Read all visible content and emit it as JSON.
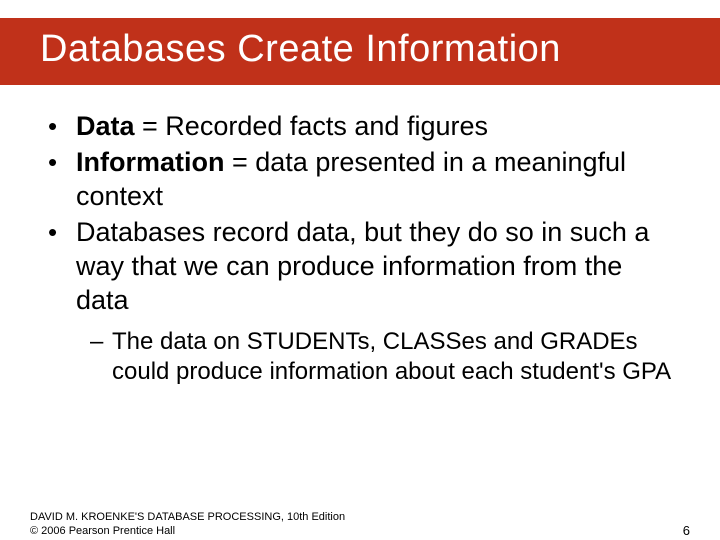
{
  "colors": {
    "title_background": "#c0311a",
    "title_text": "#ffffff",
    "body_background": "#ffffff",
    "body_text": "#000000"
  },
  "typography": {
    "title_fontsize": 38,
    "body_fontsize": 27,
    "sub_fontsize": 24,
    "footer_fontsize": 11
  },
  "title": "Databases Create Information",
  "bullets": {
    "b1": {
      "term": "Data",
      "rest": " = Recorded facts and figures"
    },
    "b2": {
      "term": "Information",
      "rest": " = data presented in a meaningful context"
    },
    "b3": {
      "text": "Databases record data, but they do so in such a way that we can produce information from the data"
    },
    "b3sub": {
      "text": "The data on STUDENTs, CLASSes and GRADEs could produce information about each student's GPA"
    }
  },
  "footer": {
    "line1": "DAVID M. KROENKE'S DATABASE PROCESSING, 10th Edition",
    "line2": "© 2006 Pearson Prentice Hall",
    "page": "6"
  }
}
